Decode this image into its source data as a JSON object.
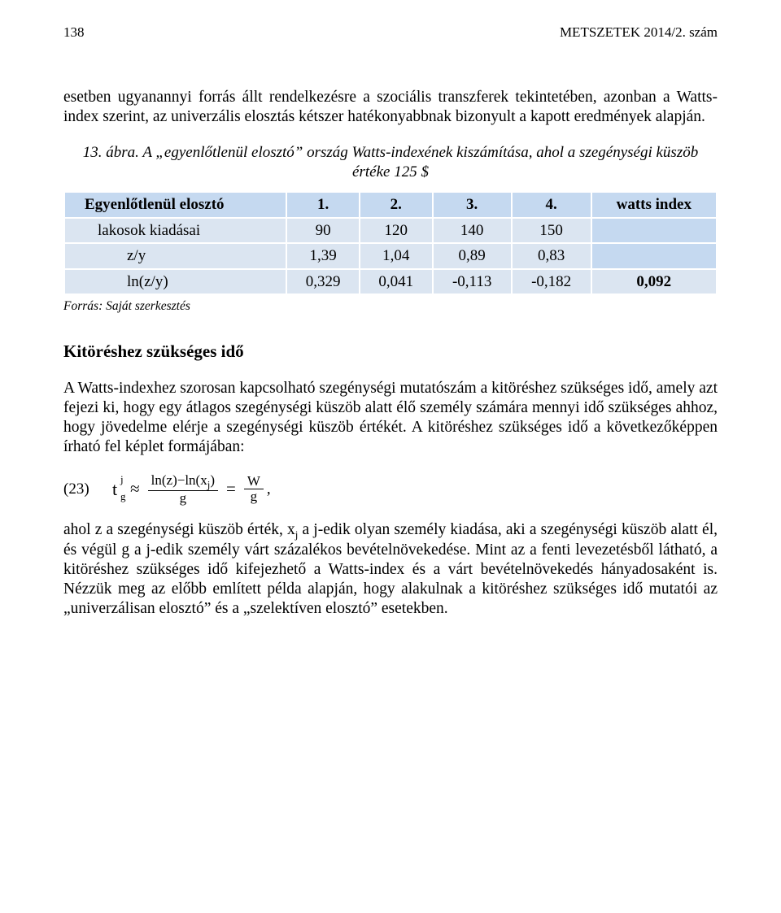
{
  "header": {
    "page_number": "138",
    "journal": "METSZETEK 2014/2. szám"
  },
  "intro_para": "esetben ugyanannyi forrás állt rendelkezésre a szociális transzferek tekintetében, azonban a Watts-index szerint, az univerzális elosztás kétszer hatékonyabbnak bizonyult a kapott eredmények alapján.",
  "caption_line1": "13. ábra. A „egyenlőtlenül elosztó” ország Watts-indexének kiszámítása, ahol a szegénységi küszöb",
  "caption_line2": "értéke 125 $",
  "table": {
    "header_bg": "#c5d9f0",
    "row_label_bg": "#dbe5f1",
    "cell_bg": "#dbe5f1",
    "blank_bg": "#c5d9f0",
    "header": {
      "label": "Egyenlőtlenül elosztó",
      "cols": [
        "1.",
        "2.",
        "3.",
        "4.",
        "watts index"
      ]
    },
    "rows": [
      {
        "label": "lakosok kiadásai",
        "indent": 1,
        "values": [
          "90",
          "120",
          "140",
          "150"
        ],
        "last": ""
      },
      {
        "label": "z/y",
        "indent": 2,
        "values": [
          "1,39",
          "1,04",
          "0,89",
          "0,83"
        ],
        "last": ""
      },
      {
        "label": "ln(z/y)",
        "indent": 2,
        "values": [
          "0,329",
          "0,041",
          "-0,113",
          "-0,182"
        ],
        "last": "0,092",
        "last_bold": true
      }
    ]
  },
  "source": "Forrás: Saját szerkesztés",
  "section_title": "Kitöréshez szükséges idő",
  "para_after_title": "A Watts-indexhez szorosan kapcsolható szegénységi mutatószám a kitöréshez szükséges idő, amely azt fejezi ki, hogy egy átlagos szegénységi küszöb alatt élő személy számára mennyi idő szükséges ahhoz, hogy jövedelme elérje a szegénységi küszöb értékét. A kitöréshez szükséges idő a következőképpen írható fel képlet formájában:",
  "formula": {
    "number": "(23)",
    "t_base": "t",
    "t_sup": "j",
    "t_sub": "g",
    "approx": "≈",
    "frac1_num": "ln(z)−ln(x",
    "frac1_num_sub": "j",
    "frac1_num_close": ")",
    "frac1_den": "g",
    "eq": "=",
    "frac2_num": "W",
    "frac2_den": "g",
    "tail": ","
  },
  "para_final": "ahol z a szegénységi küszöb érték, xj a j-edik olyan személy kiadása, aki a szegénységi küszöb alatt él, és végül g a j-edik személy várt százalékos bevételnövekedése. Mint az a fenti levezetésből látható, a kitöréshez szükséges idő kifejezhető a Watts-index és a várt bevételnövekedés hányadosaként is. Nézzük meg az előbb említett példa alapján, hogy alakulnak a kitöréshez szükséges idő mutatói az „univerzálisan elosztó” és a „szelektíven elosztó” esetekben.",
  "para_final_x": "x",
  "para_final_j": "j"
}
